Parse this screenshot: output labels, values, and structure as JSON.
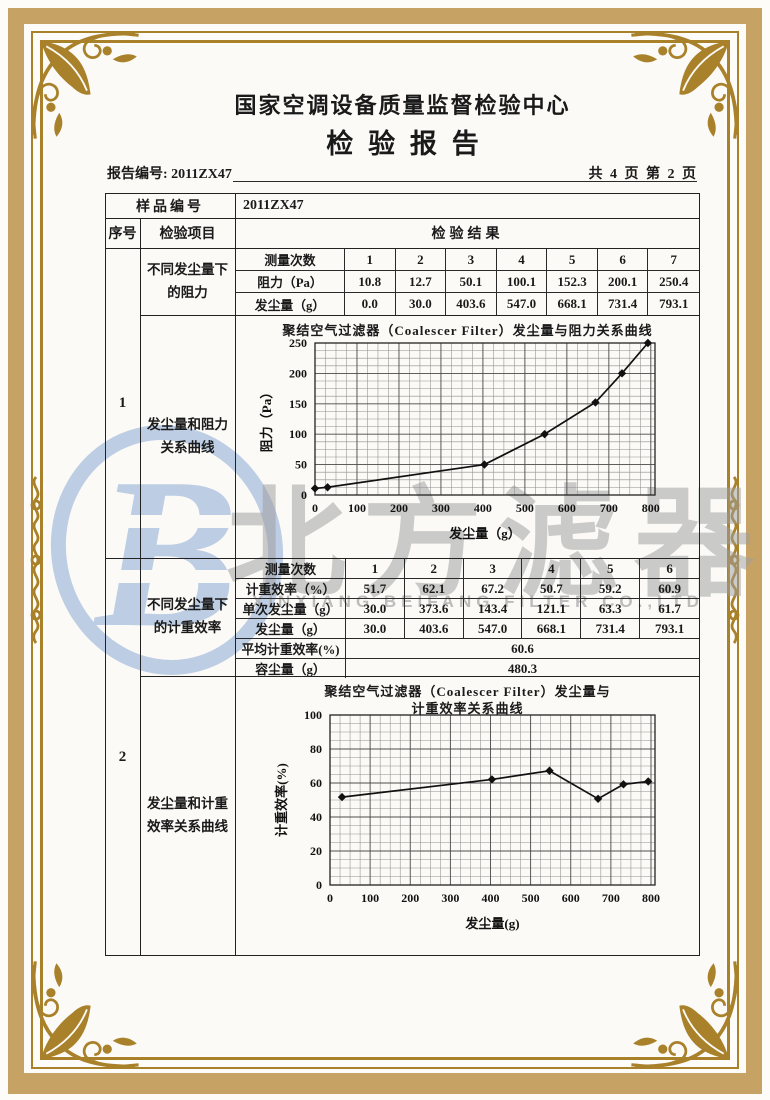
{
  "header": {
    "center_name": "国家空调设备质量监督检验中心",
    "report_title": "检验报告",
    "report_no": "报告编号: 2011ZX47",
    "page_info": "共 4 页 第 2 页"
  },
  "table": {
    "sample_no_label": "样品编号",
    "sample_no_value": "2011ZX47",
    "col_serial": "序号",
    "col_item": "检验项目",
    "col_result": "检验结果",
    "section1": {
      "serial": "1",
      "item_top": "不同发尘量下的阻力",
      "item_bottom": "发尘量和阻力关系曲线",
      "rows": [
        {
          "label": "测量次数",
          "values": [
            "1",
            "2",
            "3",
            "4",
            "5",
            "6",
            "7"
          ]
        },
        {
          "label": "阻力（Pa）",
          "values": [
            "10.8",
            "12.7",
            "50.1",
            "100.1",
            "152.3",
            "200.1",
            "250.4"
          ]
        },
        {
          "label": "发尘量（g）",
          "values": [
            "0.0",
            "30.0",
            "403.6",
            "547.0",
            "668.1",
            "731.4",
            "793.1"
          ]
        }
      ]
    },
    "section2": {
      "serial": "2",
      "item_top": "不同发尘量下的计重效率",
      "item_bottom": "发尘量和计重效率关系曲线",
      "rows": [
        {
          "label": "测量次数",
          "values": [
            "1",
            "2",
            "3",
            "4",
            "5",
            "6"
          ]
        },
        {
          "label": "计重效率（%）",
          "values": [
            "51.7",
            "62.1",
            "67.2",
            "50.7",
            "59.2",
            "60.9"
          ]
        },
        {
          "label": "单次发尘量（g）",
          "values": [
            "30.0",
            "373.6",
            "143.4",
            "121.1",
            "63.3",
            "61.7"
          ]
        },
        {
          "label": "发尘量（g）",
          "values": [
            "30.0",
            "403.6",
            "547.0",
            "668.1",
            "731.4",
            "793.1"
          ]
        }
      ],
      "avg_label": "平均计重效率(%)",
      "avg_value": "60.6",
      "capacity_label": "容尘量（g）",
      "capacity_value": "480.3"
    }
  },
  "watermark": {
    "logo_letter": "B",
    "cn_text": "北方滤器",
    "en_text": "XINXIANG BEIFANG FILTER CO.,LTD",
    "logo_color": "#b7c9e2",
    "text_color": "#9f9f9f"
  },
  "frame_colors": {
    "band_tan": "#c6a365",
    "ornament_gold": "#a9812a"
  },
  "chart_data": [
    {
      "type": "line",
      "title": "聚结空气过滤器（Coalescer Filter）发尘量与阻力关系曲线",
      "xlabel": "发尘量（g）",
      "ylabel": "阻力（Pa）",
      "x": [
        0,
        30,
        403.6,
        547.0,
        668.1,
        731.4,
        793.1
      ],
      "y": [
        10.8,
        12.7,
        50.1,
        100.1,
        152.3,
        200.1,
        250.4
      ],
      "xlim": [
        0,
        810
      ],
      "ylim": [
        0,
        250
      ],
      "xticks": [
        0,
        100,
        200,
        300,
        400,
        500,
        600,
        700,
        800
      ],
      "yticks": [
        0,
        50,
        100,
        150,
        200,
        250
      ],
      "minor_x": 25,
      "minor_y": 12.5,
      "grid": "on",
      "legend": "none",
      "marker": "diamond"
    },
    {
      "type": "line",
      "title": "聚结空气过滤器（Coalescer Filter）发尘量与计重效率关系曲线",
      "title_line1": "聚结空气过滤器（Coalescer Filter）发尘量与",
      "title_line2": "计重效率关系曲线",
      "xlabel": "发尘量(g)",
      "ylabel": "计重效率(%)",
      "x": [
        30,
        403.6,
        547.0,
        668.1,
        731.4,
        793.1
      ],
      "y": [
        51.7,
        62.1,
        67.2,
        50.7,
        59.2,
        60.9
      ],
      "xlim": [
        0,
        810
      ],
      "ylim": [
        0,
        100
      ],
      "xticks": [
        0,
        100,
        200,
        300,
        400,
        500,
        600,
        700,
        800
      ],
      "yticks": [
        0,
        20,
        40,
        60,
        80,
        100
      ],
      "minor_x": 25,
      "minor_y": 5,
      "grid": "on",
      "legend": "none",
      "marker": "diamond"
    }
  ]
}
